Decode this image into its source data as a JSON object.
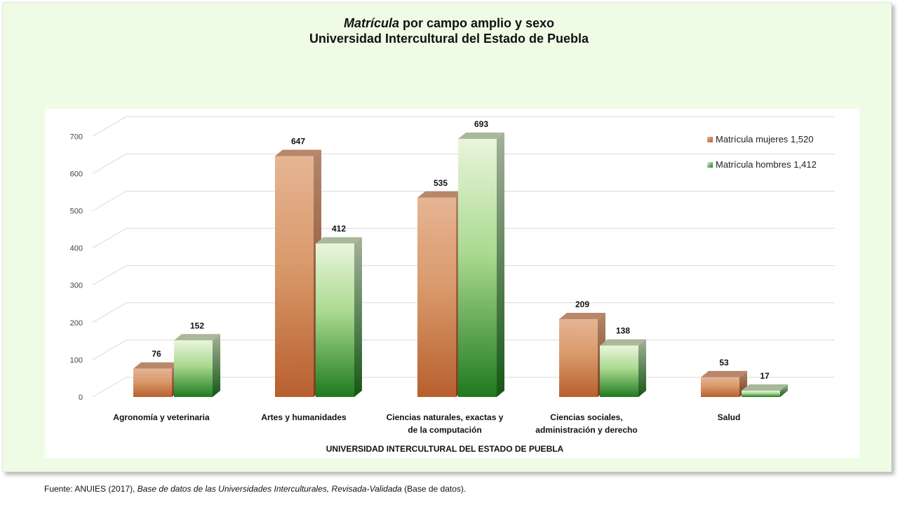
{
  "title": {
    "line1_italic": "Matrícula",
    "line1_rest": " por campo amplio y sexo",
    "line2": "Universidad Intercultural del Estado de Puebla"
  },
  "source": {
    "prefix": "Fuente: ANUIES (2017),  ",
    "italic": "Base de datos de las Universidades  Interculturales, Revisada-Validada",
    "suffix": "  (Base de datos)."
  },
  "colors": {
    "women_light": "#e6b494",
    "women_dark": "#b85f2e",
    "women_top": "#b8876a",
    "men_light": "#eaf5dc",
    "men_dark": "#1f7a1f",
    "men_top": "#a9b89a",
    "frame_background": "#eefce6"
  },
  "chart_data": {
    "type": "bar",
    "title": "Matrícula por campo amplio y sexo Universidad Intercultural del Estado de Puebla",
    "xlabel": "UNIVERSIDAD INTERCULTURAL DEL ESTADO DE PUEBLA",
    "ylabel": "",
    "ylim": [
      0,
      700
    ],
    "yticks": [
      0,
      100,
      200,
      300,
      400,
      500,
      600,
      700
    ],
    "categories": [
      [
        "Agronomía y veterinaria"
      ],
      [
        "Artes y humanidades"
      ],
      [
        "Ciencias naturales, exactas y",
        "de la computación"
      ],
      [
        "Ciencias sociales,",
        "administración y derecho"
      ],
      [
        "Salud"
      ]
    ],
    "series": [
      {
        "name": "Matrícula mujeres  1,520",
        "values": [
          76,
          647,
          535,
          209,
          53
        ]
      },
      {
        "name": "Matrícula hombres 1,412",
        "values": [
          152,
          412,
          693,
          138,
          17
        ]
      }
    ],
    "grid": true,
    "legend": "top-right",
    "style": "3d-column"
  }
}
